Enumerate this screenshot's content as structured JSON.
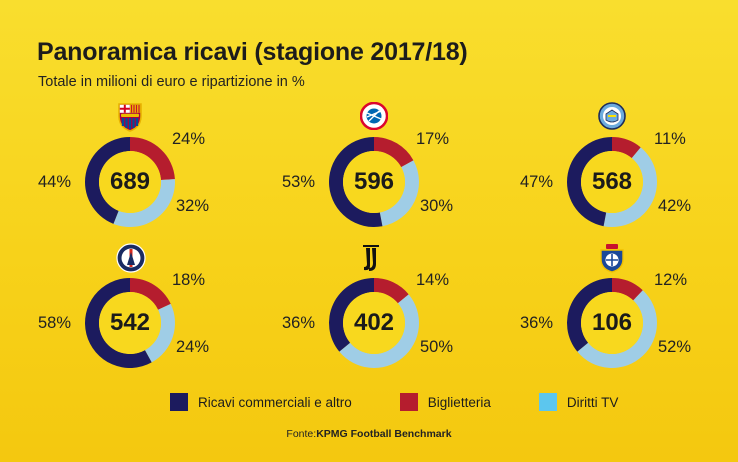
{
  "title": "Panoramica ricavi (stagione 2017/18)",
  "subtitle": "Totale in milioni di euro e ripartizione in %",
  "colors": {
    "commercial": "#1c1b5e",
    "ticketing": "#b51d2e",
    "tv": "#9fcde6",
    "center": "#f8d81e"
  },
  "chart_data": {
    "type": "pie",
    "series_names": [
      "Ricavi commerciali e altro",
      "Biglietteria",
      "Diritti TV"
    ],
    "clubs": [
      {
        "logo": "fc-barcelona-crest",
        "total": 689,
        "values": [
          44,
          24,
          32
        ],
        "labels": [
          "44%",
          "24%",
          "32%"
        ]
      },
      {
        "logo": "bayern-munich-crest",
        "total": 596,
        "values": [
          53,
          17,
          30
        ],
        "labels": [
          "53%",
          "17%",
          "30%"
        ]
      },
      {
        "logo": "manchester-city-crest",
        "total": 568,
        "values": [
          47,
          11,
          42
        ],
        "labels": [
          "47%",
          "11%",
          "42%"
        ]
      },
      {
        "logo": "psg-crest",
        "total": 542,
        "values": [
          58,
          18,
          24
        ],
        "labels": [
          "58%",
          "18%",
          "24%"
        ]
      },
      {
        "logo": "juventus-logo",
        "total": 402,
        "values": [
          36,
          14,
          50
        ],
        "labels": [
          "36%",
          "14%",
          "50%"
        ]
      },
      {
        "logo": "fc-porto-crest",
        "total": 106,
        "values": [
          36,
          12,
          52
        ],
        "labels": [
          "36%",
          "12%",
          "52%"
        ]
      }
    ]
  },
  "legend": [
    {
      "label": "Ricavi commerciali e altro",
      "color": "#1c1b5e"
    },
    {
      "label": "Biglietteria",
      "color": "#b51d2e"
    },
    {
      "label": "Diritti TV",
      "color": "#5cc6ee"
    }
  ],
  "source": {
    "prefix": "Fonte:",
    "name": "KPMG Football Benchmark"
  }
}
